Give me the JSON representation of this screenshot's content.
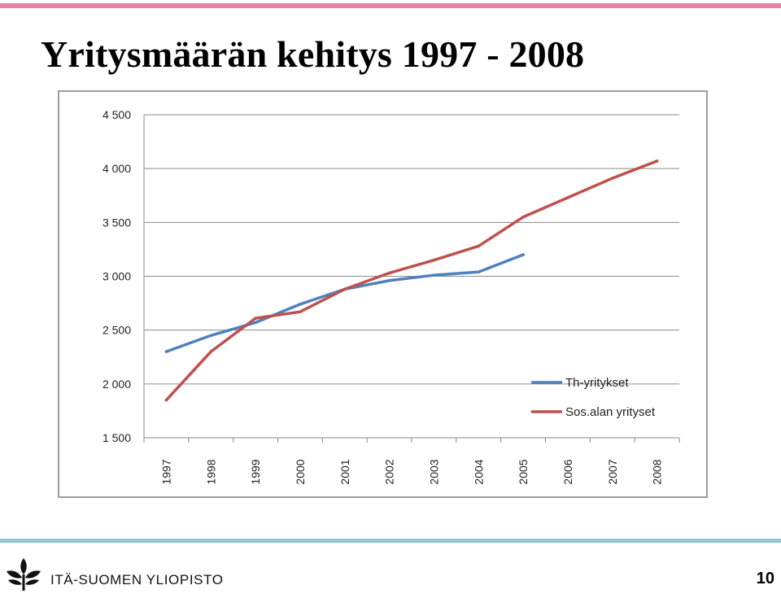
{
  "slide": {
    "title": "Yritysmäärän kehitys 1997 - 2008",
    "university": "ITÄ-SUOMEN YLIOPISTO",
    "page_number": "10"
  },
  "colors": {
    "top_bar": "#e8839e",
    "bottom_bar": "#8fc9d8",
    "series_th": "#4f81bd",
    "series_sos": "#c0504d"
  },
  "icons": {
    "logo": "university-leaf-logo"
  },
  "chart_data": {
    "type": "line",
    "title": "",
    "xlabel": "",
    "ylabel": "",
    "categories": [
      "1997",
      "1998",
      "1999",
      "2000",
      "2001",
      "2002",
      "2003",
      "2004",
      "2005",
      "2006",
      "2007",
      "2008"
    ],
    "ylim": [
      1500,
      4500
    ],
    "y_ticks": [
      1500,
      2000,
      2500,
      3000,
      3500,
      4000,
      4500
    ],
    "y_tick_labels": [
      "1 500",
      "2 000",
      "2 500",
      "3 000",
      "3 500",
      "4 000",
      "4 500"
    ],
    "grid": true,
    "legend_position": "bottom-right",
    "series": [
      {
        "name": "Th-yritykset",
        "color": "#4f81bd",
        "values": [
          2300,
          2450,
          2570,
          2740,
          2880,
          2960,
          3010,
          3040,
          3200,
          null,
          null,
          null
        ]
      },
      {
        "name": "Sos.alan yrityset",
        "color": "#c0504d",
        "values": [
          1850,
          2300,
          2610,
          2670,
          2880,
          3030,
          3150,
          3280,
          3550,
          3730,
          3910,
          4070
        ]
      }
    ]
  }
}
